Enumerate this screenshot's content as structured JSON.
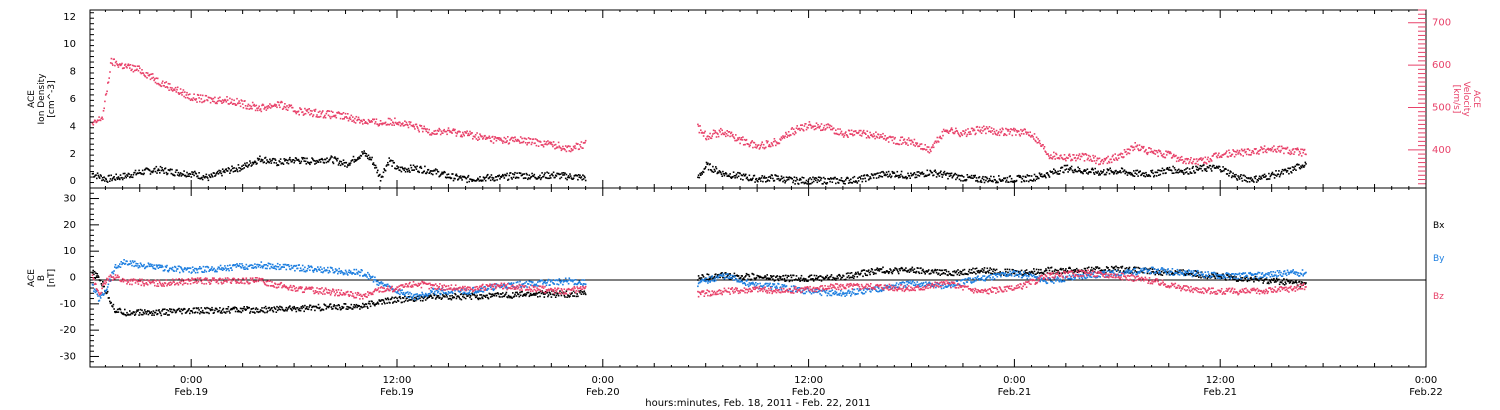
{
  "figure": {
    "xlabel": "hours:minutes, Feb. 18, 2011 - Feb. 22, 2011",
    "x_ticks": [
      {
        "time": "0:00",
        "date": "Feb.19",
        "hours": 24
      },
      {
        "time": "12:00",
        "date": "Feb.19",
        "hours": 36
      },
      {
        "time": "0:00",
        "date": "Feb.20",
        "hours": 48
      },
      {
        "time": "12:00",
        "date": "Feb.20",
        "hours": 60
      },
      {
        "time": "0:00",
        "date": "Feb.21",
        "hours": 72
      },
      {
        "time": "12:00",
        "date": "Feb.21",
        "hours": 84
      },
      {
        "time": "0:00",
        "date": "Feb.22",
        "hours": 96
      }
    ]
  },
  "colors": {
    "black": "#000000",
    "red": "#e8426a",
    "blue": "#1e7fe0"
  },
  "chart_data": [
    {
      "type": "scatter",
      "xlim": [
        18.1,
        96.0
      ],
      "ylim": [
        -0.5,
        12.5
      ],
      "y_ticks": [
        0,
        2,
        4,
        6,
        8,
        10,
        12
      ],
      "ylabel_lines": [
        "ACE",
        "Ion Density",
        "[cm^-3]"
      ],
      "y2lim": [
        310,
        730
      ],
      "y2_ticks": [
        400,
        500,
        600,
        700
      ],
      "y2label_lines": [
        "ACE",
        "Velocity",
        "[km/s]"
      ],
      "series": [
        {
          "axis": "left",
          "color": "black",
          "x": [
            18.2,
            19.0,
            20.0,
            21.0,
            22.0,
            23.0,
            24.0,
            25.0,
            26.0,
            27.0,
            28.0,
            29.0,
            30.0,
            31.0,
            32.0,
            33.0,
            34.0,
            34.5,
            35.0,
            35.5,
            36.0,
            37.0,
            38.0,
            39.0,
            40.0,
            41.0,
            42.0,
            43.0,
            44.0,
            45.0,
            46.0,
            47.0,
            53.5,
            54.0,
            55.0,
            56.0,
            57.0,
            58.0,
            59.0,
            60.0,
            61.0,
            62.0,
            63.0,
            64.0,
            65.0,
            66.0,
            67.0,
            68.0,
            69.0,
            70.0,
            71.0,
            72.0,
            73.0,
            74.0,
            75.0,
            76.0,
            77.0,
            78.0,
            79.0,
            80.0,
            81.0,
            82.0,
            83.0,
            84.0,
            85.0,
            86.0,
            87.0,
            88.0,
            89.0
          ],
          "values": [
            0.6,
            0.2,
            0.4,
            0.7,
            0.9,
            0.7,
            0.6,
            0.3,
            0.8,
            1.1,
            1.7,
            1.4,
            1.6,
            1.5,
            1.7,
            1.3,
            2.1,
            1.6,
            0.3,
            1.6,
            0.9,
            1.0,
            0.8,
            0.4,
            0.2,
            0.3,
            0.3,
            0.5,
            0.4,
            0.5,
            0.4,
            0.3,
            0.2,
            1.2,
            0.6,
            0.4,
            0.2,
            0.3,
            0.1,
            0.1,
            0.1,
            0.1,
            0.2,
            0.5,
            0.6,
            0.4,
            0.7,
            0.5,
            0.3,
            0.2,
            0.2,
            0.2,
            0.3,
            0.6,
            1.0,
            0.8,
            0.7,
            0.8,
            0.6,
            0.6,
            0.9,
            0.8,
            1.0,
            1.0,
            0.3,
            0.2,
            0.5,
            0.8,
            1.4
          ]
        },
        {
          "axis": "right",
          "color": "red",
          "x": [
            18.2,
            18.8,
            19.3,
            20.0,
            21.0,
            22.0,
            23.0,
            24.0,
            25.0,
            26.0,
            27.0,
            28.0,
            29.0,
            30.0,
            31.0,
            32.0,
            33.0,
            34.0,
            35.0,
            36.0,
            37.0,
            38.0,
            39.0,
            40.0,
            41.0,
            42.0,
            43.0,
            44.0,
            45.0,
            46.0,
            47.0,
            53.5,
            54.0,
            55.0,
            56.0,
            57.0,
            58.0,
            59.0,
            60.0,
            61.0,
            62.0,
            63.0,
            64.0,
            65.0,
            66.0,
            67.0,
            68.0,
            69.0,
            70.0,
            71.0,
            72.0,
            73.0,
            74.0,
            75.0,
            76.0,
            77.0,
            78.0,
            79.0,
            80.0,
            81.0,
            82.0,
            83.0,
            84.0,
            85.0,
            86.0,
            87.0,
            88.0,
            89.0
          ],
          "values": [
            460,
            480,
            610,
            600,
            590,
            565,
            545,
            525,
            520,
            520,
            510,
            500,
            510,
            495,
            490,
            485,
            480,
            470,
            465,
            470,
            455,
            445,
            445,
            440,
            430,
            425,
            425,
            420,
            415,
            405,
            415,
            455,
            435,
            445,
            425,
            410,
            420,
            445,
            460,
            455,
            440,
            440,
            435,
            425,
            420,
            400,
            450,
            440,
            450,
            445,
            445,
            440,
            390,
            385,
            385,
            375,
            385,
            410,
            395,
            390,
            375,
            375,
            390,
            395,
            400,
            405,
            400,
            395
          ]
        }
      ]
    },
    {
      "type": "scatter",
      "xlim": [
        18.1,
        96.0
      ],
      "ylim": [
        -34,
        34
      ],
      "y_ticks": [
        -30,
        -20,
        -10,
        0,
        10,
        20,
        30
      ],
      "ylabel_lines": [
        "ACE",
        "B",
        "[nT]"
      ],
      "legend": [
        "Bx",
        "By",
        "Bz"
      ],
      "zero_line": true,
      "series": [
        {
          "name": "Bx",
          "color": "black",
          "x": [
            18.2,
            18.6,
            19.0,
            19.5,
            20.0,
            22.0,
            24.0,
            26.0,
            28.0,
            30.0,
            32.0,
            34.0,
            35.0,
            36.0,
            37.0,
            38.0,
            40.0,
            42.0,
            44.0,
            46.0,
            47.0,
            53.5,
            55.0,
            57.0,
            58.0,
            60.0,
            62.0,
            64.0,
            66.0,
            68.0,
            70.0,
            72.0,
            74.0,
            76.0,
            78.0,
            80.0,
            82.0,
            84.0,
            86.0,
            88.0,
            89.0
          ],
          "values": [
            2,
            0,
            -5,
            -12,
            -13,
            -13,
            -12.5,
            -12,
            -12,
            -11.5,
            -11,
            -10.5,
            -9,
            -8,
            -8,
            -7,
            -7,
            -6.5,
            -6,
            -6,
            -5.5,
            0,
            1,
            0.5,
            0,
            0,
            0.5,
            3,
            3,
            2,
            3,
            2,
            3,
            3,
            3.5,
            2.5,
            2,
            0.5,
            -0.5,
            -1.5,
            -2.5
          ]
        },
        {
          "name": "By",
          "color": "blue",
          "x": [
            18.2,
            18.6,
            19.0,
            19.5,
            20.0,
            22.0,
            24.0,
            26.0,
            28.0,
            30.0,
            32.0,
            34.0,
            35.0,
            36.0,
            37.0,
            38.0,
            40.0,
            42.0,
            44.0,
            46.0,
            47.0,
            53.5,
            55.0,
            57.0,
            58.0,
            60.0,
            62.0,
            64.0,
            66.0,
            68.0,
            70.0,
            72.0,
            74.0,
            76.0,
            78.0,
            80.0,
            82.0,
            84.0,
            86.0,
            88.0,
            89.0
          ],
          "values": [
            -3,
            -8,
            -4,
            4,
            6,
            4,
            3,
            4,
            5,
            4,
            3,
            2,
            -2,
            -5,
            -7,
            -5,
            -5,
            -3,
            -2,
            -1,
            -2,
            -2,
            1,
            -3,
            -3,
            -5,
            -6,
            -4,
            -2,
            -3,
            0,
            2,
            -1,
            1,
            2,
            3,
            2,
            1,
            1,
            2,
            2
          ]
        },
        {
          "name": "Bz",
          "color": "red",
          "x": [
            18.2,
            18.6,
            19.0,
            19.5,
            20.0,
            22.0,
            24.0,
            26.0,
            28.0,
            30.0,
            32.0,
            34.0,
            35.0,
            36.0,
            37.0,
            38.0,
            40.0,
            42.0,
            44.0,
            46.0,
            47.0,
            53.5,
            55.0,
            57.0,
            58.0,
            60.0,
            62.0,
            64.0,
            66.0,
            68.0,
            70.0,
            72.0,
            74.0,
            76.0,
            78.0,
            80.0,
            82.0,
            84.0,
            86.0,
            88.0,
            89.0
          ],
          "values": [
            0,
            -6,
            -1,
            1,
            -1,
            -2,
            -1,
            -1,
            -1,
            -4,
            -5,
            -7,
            -4,
            -4,
            -2,
            -3,
            -4,
            -3,
            -4,
            -5,
            -3,
            -6,
            -5,
            -4,
            -5,
            -4,
            -3,
            -3,
            -4,
            -2,
            -5,
            -4,
            1,
            2,
            1,
            -1,
            -4,
            -5,
            -5,
            -4,
            -3
          ]
        }
      ]
    }
  ]
}
